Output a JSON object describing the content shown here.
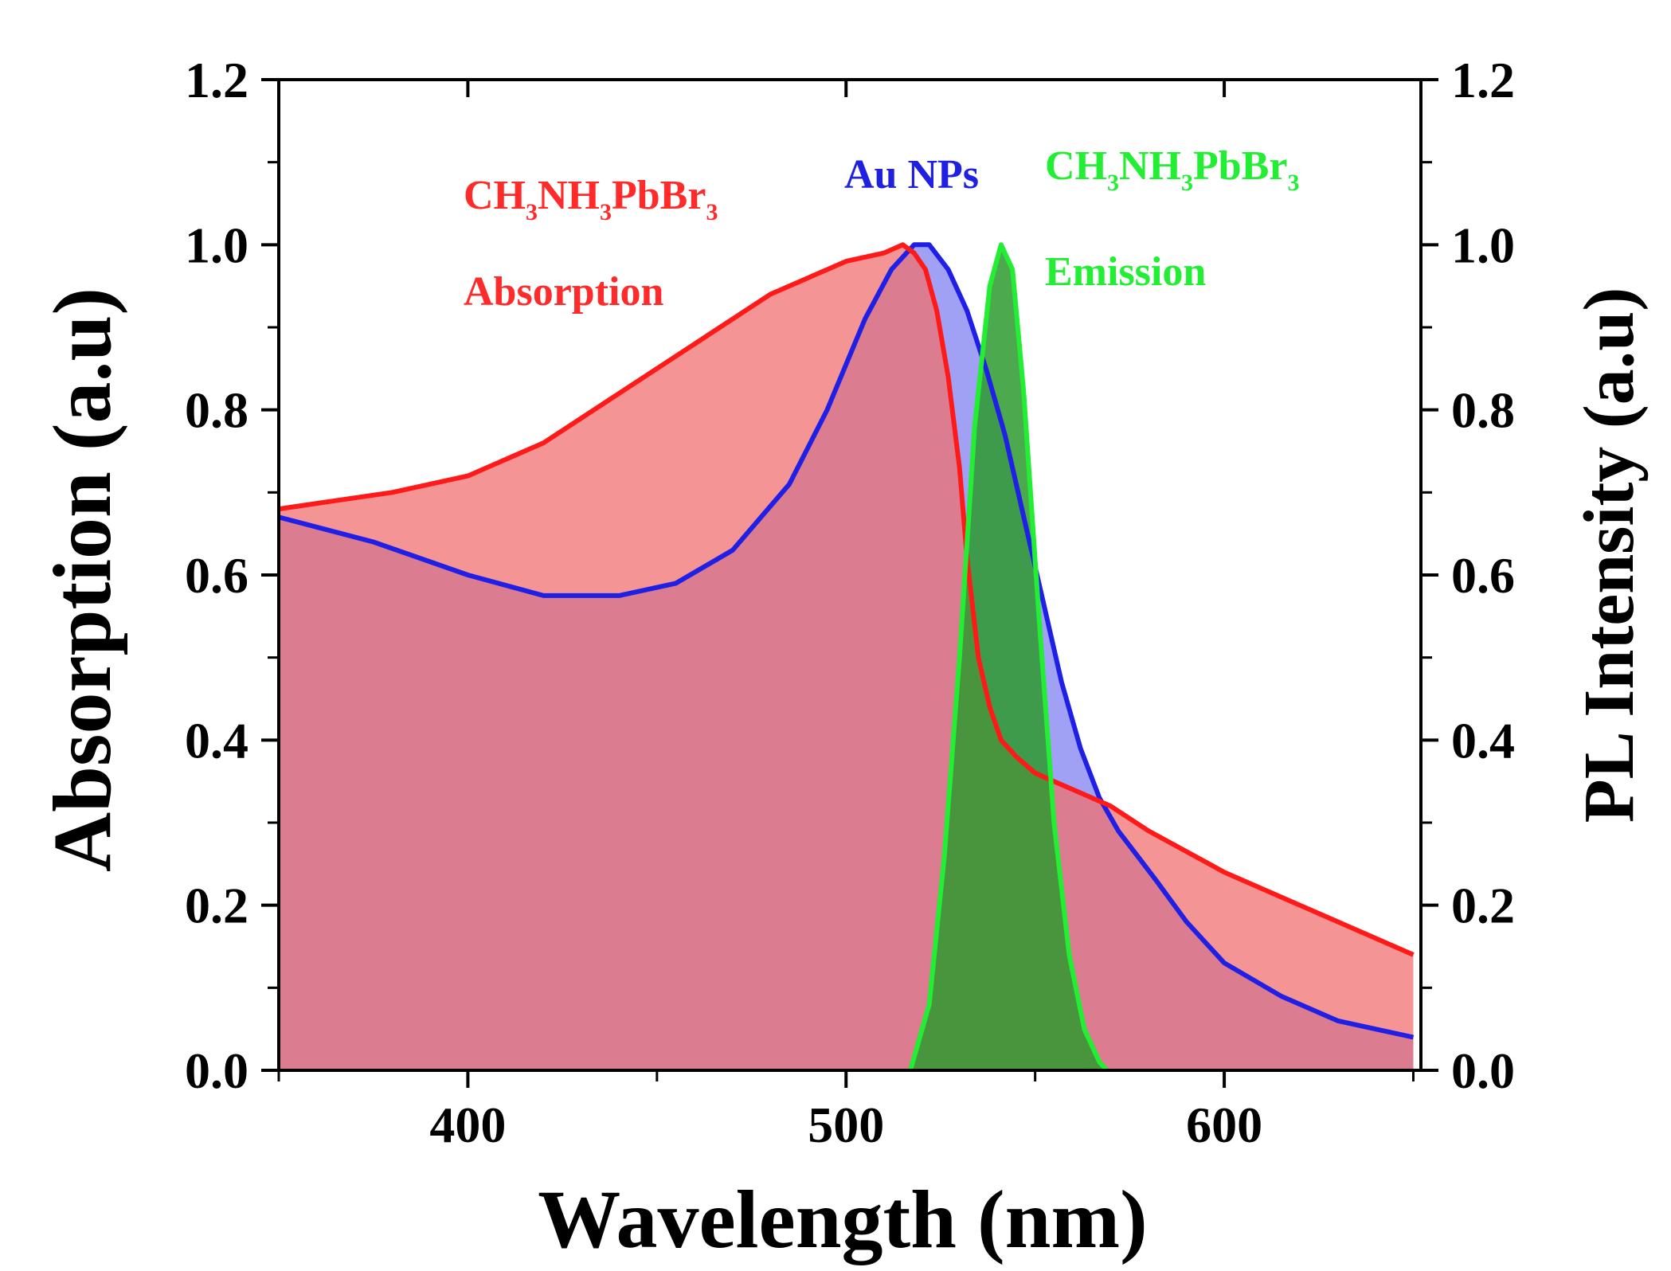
{
  "chart_data": {
    "type": "area",
    "title": "",
    "xlabel": "Wavelength (nm)",
    "ylabel": "Absorption (a.u)",
    "y2label": "PL Intensity (a.u)",
    "xlim": [
      350,
      652
    ],
    "ylim": [
      0,
      1.2
    ],
    "y2lim": [
      0,
      1.2
    ],
    "x_ticks": [
      400,
      500,
      600
    ],
    "x_ticklabels": [
      "400",
      "500",
      "600"
    ],
    "y_ticks": [
      0,
      0.2,
      0.4,
      0.6,
      0.8,
      1.0,
      1.2
    ],
    "y_ticklabels": [
      "0.0",
      "0.2",
      "0.4",
      "0.6",
      "0.8",
      "1.0",
      "1.2"
    ],
    "y2_ticklabels": [
      "0.0",
      "0.2",
      "0.4",
      "0.6",
      "0.8",
      "1.0",
      "1.2"
    ],
    "grid": false,
    "series": [
      {
        "name": "Au NPs",
        "axis": "left",
        "color": "#1f1fe6",
        "fill": "#8080f0",
        "x": [
          350,
          375,
          400,
          420,
          440,
          455,
          470,
          485,
          495,
          505,
          512,
          518,
          522,
          527,
          532,
          537,
          542,
          547,
          552,
          557,
          562,
          567,
          572,
          577,
          582,
          590,
          600,
          615,
          630,
          640,
          650
        ],
        "values": [
          0.67,
          0.64,
          0.6,
          0.575,
          0.575,
          0.59,
          0.63,
          0.71,
          0.8,
          0.91,
          0.97,
          1.0,
          1.0,
          0.97,
          0.92,
          0.85,
          0.77,
          0.67,
          0.57,
          0.47,
          0.39,
          0.33,
          0.29,
          0.26,
          0.23,
          0.18,
          0.13,
          0.09,
          0.06,
          0.05,
          0.04
        ]
      },
      {
        "name": "CH3NH3PbBr3 Absorption",
        "axis": "left",
        "color": "#ff1a1a",
        "fill": "#f07070",
        "x": [
          350,
          365,
          380,
          400,
          420,
          440,
          460,
          480,
          500,
          510,
          515,
          518,
          521,
          524,
          527,
          530,
          532,
          535,
          538,
          541,
          545,
          550,
          555,
          560,
          570,
          580,
          600,
          620,
          640,
          650
        ],
        "values": [
          0.68,
          0.69,
          0.7,
          0.72,
          0.76,
          0.82,
          0.88,
          0.94,
          0.98,
          0.99,
          1.0,
          0.99,
          0.97,
          0.92,
          0.84,
          0.73,
          0.62,
          0.5,
          0.44,
          0.4,
          0.38,
          0.36,
          0.35,
          0.34,
          0.32,
          0.29,
          0.24,
          0.2,
          0.16,
          0.14
        ]
      },
      {
        "name": "CH3NH3PbBr3 Emission",
        "axis": "right",
        "color": "#22ee33",
        "fill": "#2e9a2e",
        "x": [
          517,
          522,
          526,
          530,
          534,
          538,
          541,
          544,
          547,
          551,
          555,
          559,
          563,
          567,
          569
        ],
        "values": [
          0.0,
          0.08,
          0.26,
          0.5,
          0.78,
          0.95,
          1.0,
          0.97,
          0.82,
          0.55,
          0.3,
          0.14,
          0.05,
          0.01,
          0.0
        ]
      }
    ],
    "annotations": [
      {
        "text": "CH",
        "sub": "3",
        "text2": "NH",
        "sub2": "3",
        "text3": "PbBr",
        "sub3": "3",
        "color": "#ff2a2a"
      },
      {
        "text": "Absorption",
        "color": "#ff2a2a"
      },
      {
        "text": "Au NPs",
        "color": "#2020e0"
      },
      {
        "text": "CH",
        "sub": "3",
        "text2": "NH",
        "sub2": "3",
        "text3": "PbBr",
        "sub3": "3",
        "color": "#22ee33"
      },
      {
        "text": "Emission",
        "color": "#22ee33"
      }
    ]
  }
}
